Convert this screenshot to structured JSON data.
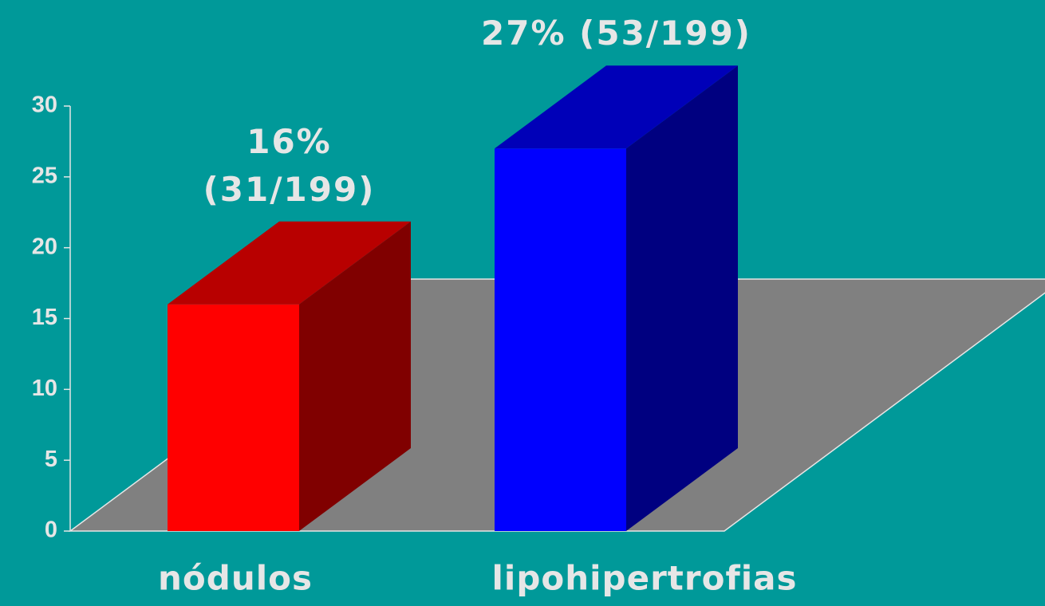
{
  "chart_data": {
    "type": "bar3d",
    "categories": [
      "nódulos",
      "lipohipertrofias"
    ],
    "values": [
      16,
      27
    ],
    "value_labels": [
      "16% (31/199)",
      "27% (53/199)"
    ],
    "colors": [
      "#ff0000",
      "#0000ff"
    ],
    "ylim": [
      0,
      30
    ],
    "yticks": [
      0,
      5,
      10,
      15,
      20,
      25,
      30
    ]
  }
}
